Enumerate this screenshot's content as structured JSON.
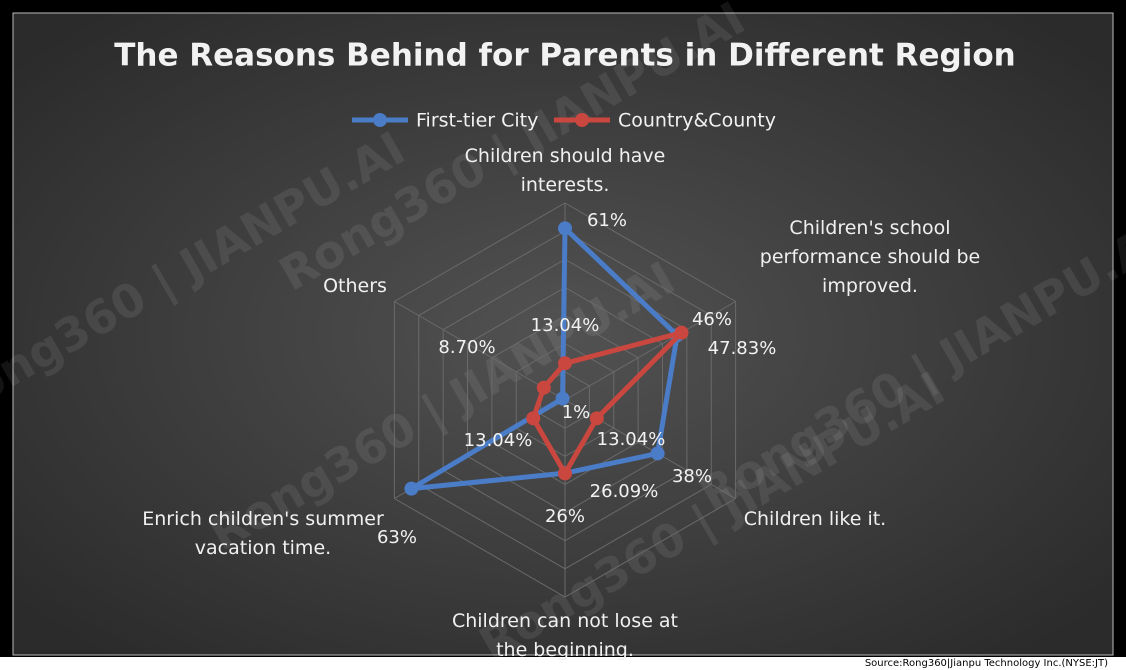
{
  "chart_data": {
    "type": "radar",
    "title": "The Reasons Behind for Parents in Different Region",
    "categories": [
      "Children should have interests.",
      "Children's school performance should be improved.",
      "Children like it.",
      "Children can not lose at the beginning.",
      "Enrich children's summer vacation time.",
      "Others"
    ],
    "series": [
      {
        "name": "First-tier City",
        "color": "#4a7cc7",
        "values": [
          61,
          46,
          38,
          26,
          63,
          1
        ],
        "value_labels": [
          "61%",
          "46%",
          "38%",
          "26%",
          "63%",
          "1%"
        ]
      },
      {
        "name": "Country&County",
        "color": "#c9473f",
        "values": [
          13.04,
          47.83,
          13.04,
          26.09,
          13.04,
          8.7
        ],
        "value_labels": [
          "13.04%",
          "47.83%",
          "13.04%",
          "26.09%",
          "13.04%",
          "8.70%"
        ]
      }
    ],
    "rlim": [
      0,
      70
    ],
    "rticks": [
      10,
      20,
      30,
      40,
      50,
      60,
      70
    ],
    "grid": true,
    "legend": "top",
    "watermark": "Rong360 | JIANPU.AI",
    "source": "Source:Rong360|Jianpu Technology Inc.(NYSE:JT)"
  }
}
